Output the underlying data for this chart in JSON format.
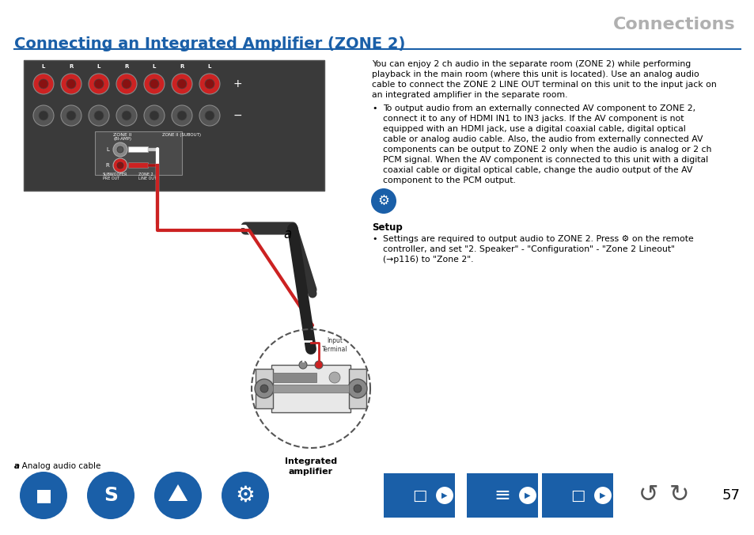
{
  "page_bg": "#ffffff",
  "header_text": "Connections",
  "header_color": "#b0b0b0",
  "title_text": "Connecting an Integrated Amplifier (ZONE 2)",
  "title_color": "#1a5fa8",
  "title_underline_color": "#1a5fa8",
  "body_text_color": "#000000",
  "page_number": "57",
  "para1": "You can enjoy 2 ch audio in the separate room (ZONE 2) while performing\nplayback in the main room (where this unit is located). Use an analog audio\ncable to connect the ZONE 2 LINE OUT terminal on this unit to the input jack on\nan integrated amplifier in the separate room.",
  "bullet1": "To output audio from an externally connected AV component to ZONE 2,\nconnect it to any of HDMI IN1 to IN3 jacks. If the AV component is not\nequipped with an HDMI jack, use a digital coaxial cable, digital optical\ncable or analog audio cable. Also, the audio from externally connected AV\ncomponents can be output to ZONE 2 only when the audio is analog or 2 ch\nPCM signal. When the AV component is connected to this unit with a digital\ncoaxial cable or digital optical cable, change the audio output of the AV\ncomponent to the PCM output.",
  "setup_label": "Setup",
  "setup_bullet": "Settings are required to output audio to ZONE 2. Press ⚙ on the remote\ncontroller, and set \"2. Speaker\" - \"Configuration\" - \"Zone 2 Lineout\"\n(→p116) to \"Zone 2\".",
  "footnote": "a Analog audio cable",
  "label_a": "a",
  "integrated_amp_label": "Integrated\namplifier",
  "input_terminal_label": "Input\nTerminal",
  "icon_blue": "#1a5fa8",
  "icon_dark": "#4a4a4a"
}
